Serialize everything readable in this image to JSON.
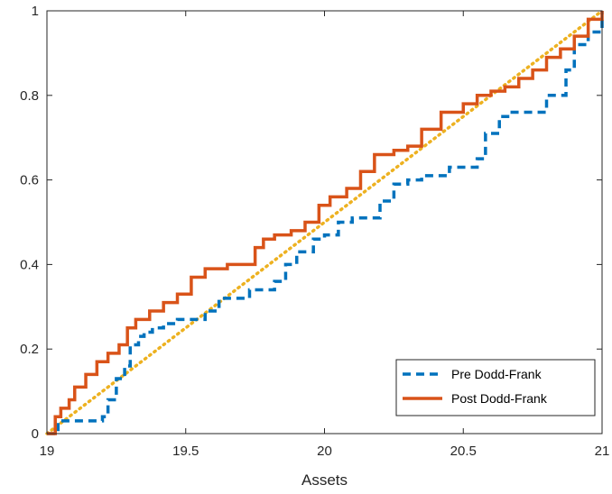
{
  "chart_data": {
    "type": "line",
    "title": "",
    "xlabel": "Assets",
    "ylabel": "",
    "xlim": [
      19,
      21
    ],
    "ylim": [
      0,
      1
    ],
    "xticks": [
      19,
      19.5,
      20,
      20.5,
      21
    ],
    "xtick_labels": [
      "19",
      "19.5",
      "20",
      "20.5",
      "21"
    ],
    "yticks": [
      0,
      0.2,
      0.4,
      0.6,
      0.8,
      1
    ],
    "ytick_labels": [
      "0",
      "0.2",
      "0.4",
      "0.6",
      "0.8",
      "1"
    ],
    "grid": false,
    "legend_position": "bottom-right",
    "series": [
      {
        "name": "Pre Dodd-Frank",
        "color": "#0072BD",
        "style": "dashed",
        "x": [
          19.0,
          19.04,
          19.2,
          19.22,
          19.25,
          19.28,
          19.3,
          19.33,
          19.35,
          19.38,
          19.42,
          19.47,
          19.57,
          19.62,
          19.73,
          19.82,
          19.86,
          19.9,
          19.96,
          20.0,
          20.05,
          20.1,
          20.15,
          20.2,
          20.25,
          20.3,
          20.35,
          20.45,
          20.5,
          20.55,
          20.58,
          20.63,
          20.67,
          20.72,
          20.76,
          20.8,
          20.83,
          20.87,
          20.9,
          20.95,
          21.0
        ],
        "y": [
          0.0,
          0.03,
          0.04,
          0.08,
          0.13,
          0.16,
          0.21,
          0.23,
          0.24,
          0.25,
          0.26,
          0.27,
          0.29,
          0.32,
          0.34,
          0.36,
          0.4,
          0.43,
          0.46,
          0.47,
          0.5,
          0.51,
          0.51,
          0.55,
          0.59,
          0.6,
          0.61,
          0.63,
          0.63,
          0.65,
          0.71,
          0.75,
          0.76,
          0.76,
          0.76,
          0.8,
          0.8,
          0.86,
          0.92,
          0.95,
          1.0
        ]
      },
      {
        "name": "Post Dodd-Frank",
        "color": "#D95319",
        "style": "solid",
        "x": [
          19.0,
          19.03,
          19.05,
          19.08,
          19.1,
          19.14,
          19.18,
          19.22,
          19.26,
          19.29,
          19.32,
          19.37,
          19.42,
          19.47,
          19.52,
          19.57,
          19.65,
          19.72,
          19.75,
          19.78,
          19.82,
          19.88,
          19.93,
          19.98,
          20.02,
          20.08,
          20.13,
          20.18,
          20.25,
          20.3,
          20.35,
          20.42,
          20.5,
          20.55,
          20.6,
          20.65,
          20.7,
          20.75,
          20.8,
          20.85,
          20.9,
          20.95,
          21.0
        ],
        "y": [
          0.0,
          0.04,
          0.06,
          0.08,
          0.11,
          0.14,
          0.17,
          0.19,
          0.21,
          0.25,
          0.27,
          0.29,
          0.31,
          0.33,
          0.37,
          0.39,
          0.4,
          0.4,
          0.44,
          0.46,
          0.47,
          0.48,
          0.5,
          0.54,
          0.56,
          0.58,
          0.62,
          0.66,
          0.67,
          0.68,
          0.72,
          0.76,
          0.78,
          0.8,
          0.81,
          0.82,
          0.84,
          0.86,
          0.89,
          0.91,
          0.94,
          0.98,
          1.0
        ]
      },
      {
        "name": "",
        "color": "#EDB120",
        "style": "dotted",
        "x": [
          19,
          21
        ],
        "y": [
          0,
          1
        ]
      }
    ]
  }
}
